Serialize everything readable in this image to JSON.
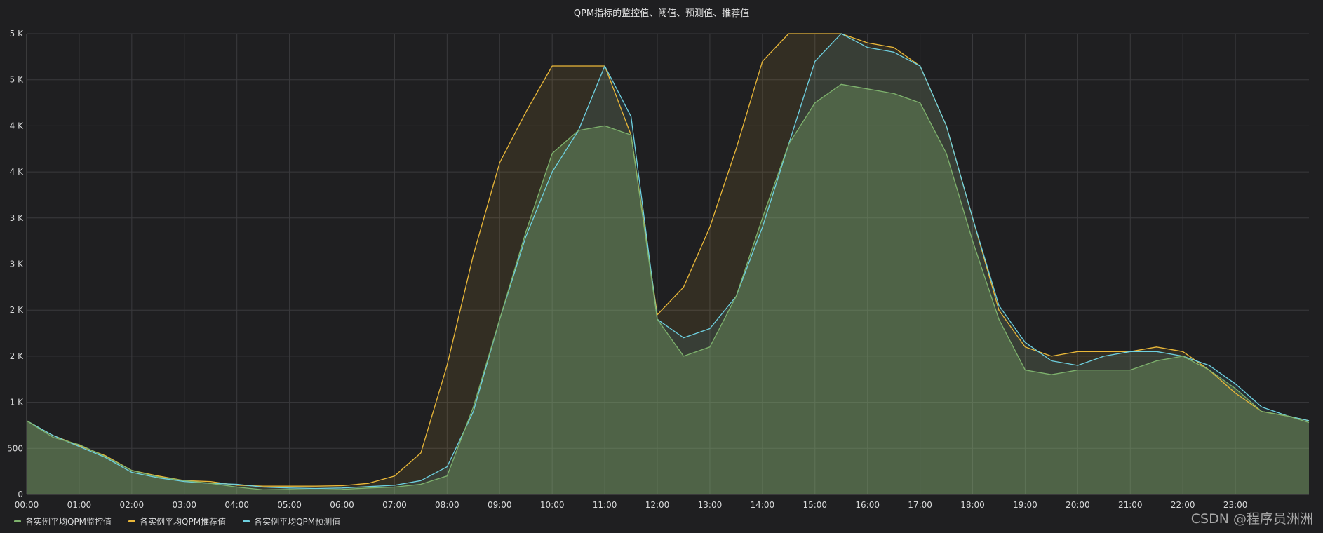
{
  "chart_data": {
    "type": "area",
    "title": "QPM指标的监控值、阈值、预测值、推荐值",
    "xlabel": "",
    "ylabel": "",
    "x_ticks": [
      "00:00",
      "01:00",
      "02:00",
      "03:00",
      "04:00",
      "05:00",
      "06:00",
      "07:00",
      "08:00",
      "09:00",
      "10:00",
      "11:00",
      "12:00",
      "13:00",
      "14:00",
      "15:00",
      "16:00",
      "17:00",
      "18:00",
      "19:00",
      "20:00",
      "21:00",
      "22:00",
      "23:00"
    ],
    "y_ticks": [
      "0",
      "500",
      "1 K",
      "2 K",
      "2 K",
      "3 K",
      "3 K",
      "4 K",
      "4 K",
      "5 K",
      "5 K"
    ],
    "xlim_hours": [
      0,
      24.4
    ],
    "ylim": [
      0,
      5000
    ],
    "grid": true,
    "legend_position": "bottom-left",
    "series": [
      {
        "name": "各实例平均QPM监控值",
        "color": "#7eb26d",
        "x_hours": [
          0,
          0.5,
          1,
          1.5,
          2,
          2.5,
          3,
          3.5,
          4,
          4.5,
          5,
          5.5,
          6,
          6.5,
          7,
          7.5,
          8,
          8.5,
          9,
          9.5,
          10,
          10.5,
          11,
          11.5,
          12,
          12.5,
          13,
          13.5,
          14,
          14.5,
          15,
          15.5,
          16,
          16.5,
          17,
          17.5,
          18,
          18.5,
          19,
          19.5,
          20,
          20.5,
          21,
          21.5,
          22,
          22.5,
          23,
          23.5,
          24,
          24.4
        ],
        "values": [
          800,
          620,
          540,
          410,
          260,
          190,
          150,
          120,
          80,
          50,
          55,
          50,
          55,
          70,
          80,
          110,
          200,
          950,
          1900,
          2850,
          3700,
          3950,
          4000,
          3900,
          1900,
          1500,
          1600,
          2150,
          3000,
          3800,
          4250,
          4450,
          4400,
          4350,
          4250,
          3700,
          2750,
          1900,
          1350,
          1300,
          1350,
          1350,
          1350,
          1450,
          1500,
          1350,
          1150,
          900,
          850,
          780
        ]
      },
      {
        "name": "各实例平均QPM推荐值",
        "color": "#eab839",
        "x_hours": [
          0,
          0.5,
          1,
          1.5,
          2,
          2.5,
          3,
          3.5,
          4,
          4.5,
          5,
          5.5,
          6,
          6.5,
          7,
          7.5,
          8,
          8.5,
          9,
          9.5,
          10,
          10.5,
          11,
          11.5,
          12,
          12.5,
          13,
          13.5,
          14,
          14.5,
          15,
          15.5,
          16,
          16.5,
          17,
          17.5,
          18,
          18.5,
          19,
          19.5,
          20,
          20.5,
          21,
          21.5,
          22,
          22.5,
          23,
          23.5,
          24,
          24.4
        ],
        "values": [
          800,
          640,
          530,
          420,
          260,
          200,
          150,
          140,
          100,
          90,
          90,
          90,
          95,
          120,
          200,
          450,
          1400,
          2600,
          3600,
          4150,
          4650,
          4650,
          4650,
          3900,
          1950,
          2250,
          2900,
          3750,
          4700,
          5000,
          5000,
          5000,
          4900,
          4850,
          4650,
          4000,
          3000,
          2000,
          1600,
          1500,
          1550,
          1550,
          1550,
          1600,
          1550,
          1350,
          1100,
          900,
          850,
          800
        ]
      },
      {
        "name": "各实例平均QPM预测值",
        "color": "#6ed0e0",
        "x_hours": [
          0,
          0.5,
          1,
          1.5,
          2,
          2.5,
          3,
          3.5,
          4,
          4.5,
          5,
          5.5,
          6,
          6.5,
          7,
          7.5,
          8,
          8.5,
          9,
          9.5,
          10,
          10.5,
          11,
          11.5,
          12,
          12.5,
          13,
          13.5,
          14,
          14.5,
          15,
          15.5,
          16,
          16.5,
          17,
          17.5,
          18,
          18.5,
          19,
          19.5,
          20,
          20.5,
          21,
          21.5,
          22,
          22.5,
          23,
          23.5,
          24,
          24.4
        ],
        "values": [
          800,
          640,
          520,
          400,
          240,
          180,
          140,
          120,
          110,
          80,
          70,
          65,
          70,
          85,
          100,
          150,
          300,
          900,
          1900,
          2800,
          3500,
          3950,
          4650,
          4100,
          1900,
          1700,
          1800,
          2150,
          2900,
          3800,
          4700,
          5000,
          4850,
          4800,
          4650,
          4000,
          3000,
          2050,
          1650,
          1450,
          1400,
          1500,
          1550,
          1550,
          1500,
          1400,
          1200,
          950,
          850,
          800
        ]
      }
    ]
  },
  "watermark": "CSDN @程序员洲洲"
}
